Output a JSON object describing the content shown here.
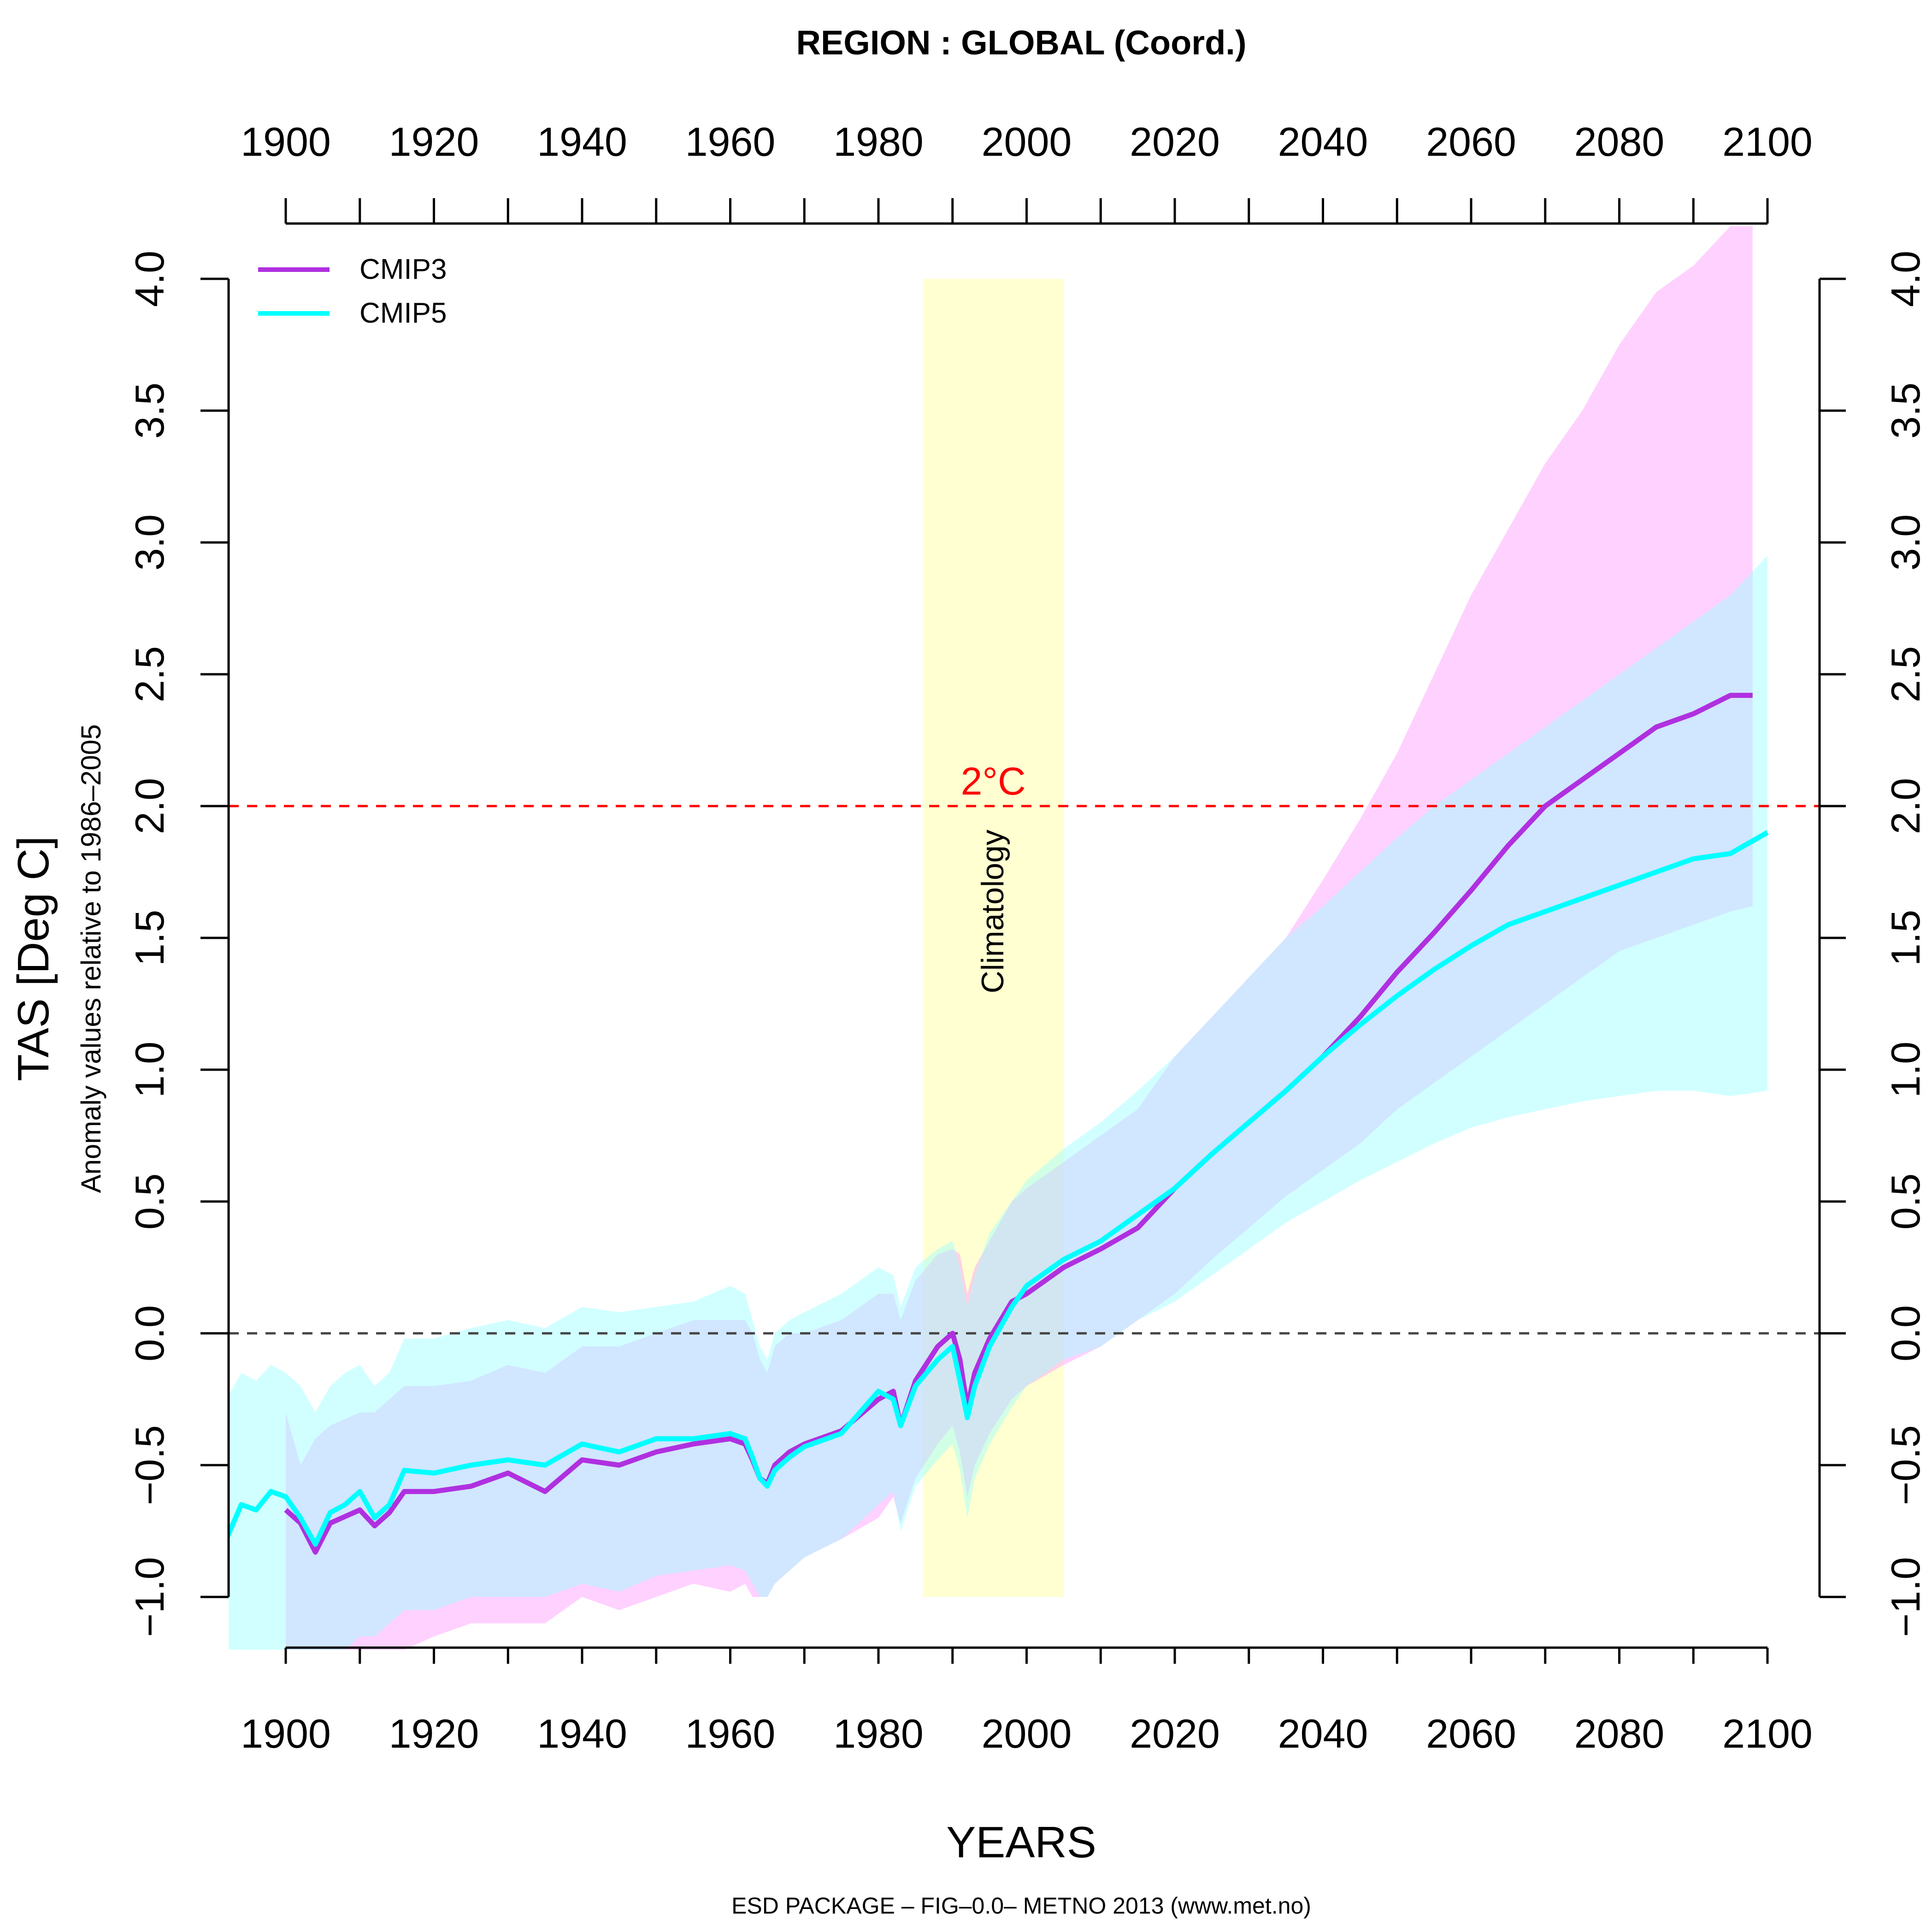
{
  "chart_data": {
    "type": "line",
    "title": "REGION :  GLOBAL (Coord.)",
    "xlabel": "YEARS",
    "ylabel": "TAS [Deg C]",
    "ylabel_sub": "Anomaly values relative to 1986–2005",
    "footer": "ESD PACKAGE – FIG–0.0– METNO 2013 (www.met.no)",
    "xlim": [
      1892,
      2100
    ],
    "ylim": [
      -1.2,
      4.2
    ],
    "x_ticks": [
      1900,
      1910,
      1920,
      1930,
      1940,
      1950,
      1960,
      1970,
      1980,
      1990,
      2000,
      2010,
      2020,
      2030,
      2040,
      2050,
      2060,
      2070,
      2080,
      2090,
      2100
    ],
    "x_tick_labels": [
      "1900",
      "1920",
      "1940",
      "1960",
      "1980",
      "2000",
      "2020",
      "2040",
      "2060",
      "2080",
      "2100"
    ],
    "y_ticks": [
      -1.0,
      -0.5,
      0.0,
      0.5,
      1.0,
      1.5,
      2.0,
      2.5,
      3.0,
      3.5,
      4.0
    ],
    "y_tick_labels": [
      "−1.0",
      "−0.5",
      "0.0",
      "0.5",
      "1.0",
      "1.5",
      "2.0",
      "2.5",
      "3.0",
      "3.5",
      "4.0"
    ],
    "legend_position": "top-left",
    "grid": false,
    "series": [
      {
        "name": "CMIP3",
        "color": "#b030e0",
        "band_color": "#ff99ff",
        "x": [
          1900,
          1902,
          1904,
          1906,
          1910,
          1912,
          1914,
          1916,
          1920,
          1925,
          1930,
          1935,
          1940,
          1945,
          1950,
          1955,
          1960,
          1962,
          1963,
          1964,
          1965,
          1966,
          1968,
          1970,
          1975,
          1980,
          1982,
          1983,
          1985,
          1988,
          1990,
          1991,
          1992,
          1993,
          1995,
          1998,
          2000,
          2005,
          2010,
          2015,
          2020,
          2025,
          2030,
          2035,
          2040,
          2045,
          2050,
          2055,
          2060,
          2065,
          2070,
          2075,
          2080,
          2085,
          2090,
          2095,
          2098
        ],
        "values": [
          -0.67,
          -0.72,
          -0.83,
          -0.72,
          -0.67,
          -0.73,
          -0.68,
          -0.6,
          -0.6,
          -0.58,
          -0.53,
          -0.6,
          -0.48,
          -0.5,
          -0.45,
          -0.42,
          -0.4,
          -0.42,
          -0.48,
          -0.55,
          -0.57,
          -0.5,
          -0.45,
          -0.42,
          -0.37,
          -0.25,
          -0.22,
          -0.35,
          -0.18,
          -0.05,
          0.0,
          -0.1,
          -0.28,
          -0.15,
          -0.02,
          0.12,
          0.15,
          0.25,
          0.32,
          0.4,
          0.55,
          0.68,
          0.8,
          0.92,
          1.05,
          1.2,
          1.37,
          1.52,
          1.68,
          1.85,
          2.0,
          2.1,
          2.2,
          2.3,
          2.35,
          2.42,
          2.42
        ],
        "upper": [
          -0.3,
          -0.5,
          -0.4,
          -0.35,
          -0.3,
          -0.3,
          -0.25,
          -0.2,
          -0.2,
          -0.18,
          -0.12,
          -0.15,
          -0.05,
          -0.05,
          0.0,
          0.05,
          0.05,
          0.05,
          0.0,
          -0.1,
          -0.15,
          -0.05,
          0.0,
          0.0,
          0.05,
          0.15,
          0.15,
          0.05,
          0.2,
          0.3,
          0.32,
          0.3,
          0.15,
          0.25,
          0.35,
          0.5,
          0.55,
          0.65,
          0.75,
          0.85,
          1.05,
          1.2,
          1.35,
          1.5,
          1.72,
          1.95,
          2.2,
          2.5,
          2.8,
          3.05,
          3.3,
          3.5,
          3.75,
          3.95,
          4.05,
          4.2,
          4.2
        ],
        "lower": [
          -1.2,
          -1.2,
          -1.2,
          -1.2,
          -1.2,
          -1.2,
          -1.2,
          -1.2,
          -1.15,
          -1.1,
          -1.1,
          -1.1,
          -1.0,
          -1.05,
          -1.0,
          -0.95,
          -0.98,
          -0.95,
          -1.0,
          -1.0,
          -1.0,
          -0.95,
          -0.9,
          -0.85,
          -0.78,
          -0.7,
          -0.62,
          -0.72,
          -0.55,
          -0.42,
          -0.35,
          -0.45,
          -0.62,
          -0.5,
          -0.38,
          -0.25,
          -0.2,
          -0.12,
          -0.05,
          0.05,
          0.15,
          0.28,
          0.4,
          0.52,
          0.62,
          0.72,
          0.85,
          0.95,
          1.05,
          1.15,
          1.25,
          1.35,
          1.45,
          1.5,
          1.55,
          1.6,
          1.62
        ]
      },
      {
        "name": "CMIP5",
        "color": "#00ffff",
        "band_color": "#99ffff",
        "x": [
          1892,
          1894,
          1896,
          1898,
          1900,
          1902,
          1904,
          1906,
          1908,
          1910,
          1912,
          1914,
          1916,
          1920,
          1925,
          1930,
          1935,
          1940,
          1945,
          1950,
          1955,
          1960,
          1962,
          1963,
          1964,
          1965,
          1966,
          1968,
          1970,
          1975,
          1980,
          1982,
          1983,
          1985,
          1988,
          1990,
          1991,
          1992,
          1993,
          1995,
          1998,
          2000,
          2005,
          2010,
          2015,
          2020,
          2025,
          2030,
          2035,
          2040,
          2045,
          2050,
          2055,
          2060,
          2065,
          2070,
          2075,
          2080,
          2085,
          2090,
          2095,
          2100
        ],
        "values": [
          -0.78,
          -0.65,
          -0.67,
          -0.6,
          -0.62,
          -0.7,
          -0.8,
          -0.68,
          -0.65,
          -0.6,
          -0.7,
          -0.65,
          -0.52,
          -0.53,
          -0.5,
          -0.48,
          -0.5,
          -0.42,
          -0.45,
          -0.4,
          -0.4,
          -0.38,
          -0.4,
          -0.47,
          -0.55,
          -0.58,
          -0.52,
          -0.47,
          -0.43,
          -0.38,
          -0.22,
          -0.25,
          -0.35,
          -0.2,
          -0.1,
          -0.05,
          -0.18,
          -0.32,
          -0.2,
          -0.05,
          0.1,
          0.18,
          0.28,
          0.35,
          0.45,
          0.55,
          0.68,
          0.8,
          0.92,
          1.05,
          1.17,
          1.28,
          1.38,
          1.47,
          1.55,
          1.6,
          1.65,
          1.7,
          1.75,
          1.8,
          1.82,
          1.9
        ],
        "upper": [
          -0.25,
          -0.15,
          -0.18,
          -0.12,
          -0.15,
          -0.2,
          -0.3,
          -0.2,
          -0.15,
          -0.12,
          -0.2,
          -0.15,
          -0.02,
          -0.02,
          0.02,
          0.05,
          0.02,
          0.1,
          0.08,
          0.1,
          0.12,
          0.18,
          0.15,
          0.05,
          -0.05,
          -0.1,
          0.0,
          0.05,
          0.08,
          0.15,
          0.25,
          0.22,
          0.1,
          0.25,
          0.32,
          0.35,
          0.25,
          0.1,
          0.22,
          0.38,
          0.5,
          0.58,
          0.7,
          0.8,
          0.92,
          1.05,
          1.2,
          1.35,
          1.5,
          1.62,
          1.75,
          1.88,
          2.0,
          2.1,
          2.2,
          2.3,
          2.4,
          2.5,
          2.6,
          2.7,
          2.8,
          2.95
        ],
        "lower": [
          -1.2,
          -1.2,
          -1.2,
          -1.2,
          -1.2,
          -1.2,
          -1.2,
          -1.2,
          -1.2,
          -1.15,
          -1.15,
          -1.1,
          -1.05,
          -1.05,
          -1.0,
          -1.0,
          -1.0,
          -0.95,
          -0.98,
          -0.92,
          -0.9,
          -0.88,
          -0.9,
          -0.95,
          -1.0,
          -1.0,
          -0.95,
          -0.9,
          -0.85,
          -0.78,
          -0.65,
          -0.6,
          -0.75,
          -0.58,
          -0.48,
          -0.42,
          -0.52,
          -0.7,
          -0.55,
          -0.42,
          -0.28,
          -0.2,
          -0.1,
          -0.05,
          0.05,
          0.12,
          0.22,
          0.32,
          0.42,
          0.5,
          0.58,
          0.65,
          0.72,
          0.78,
          0.82,
          0.85,
          0.88,
          0.9,
          0.92,
          0.92,
          0.9,
          0.92
        ]
      }
    ],
    "climatology": {
      "x_start": 1986,
      "x_end": 2005,
      "y_min": -1.0,
      "y_max": 4.0,
      "label": "Climatology",
      "color": "#ffffcc"
    },
    "reference_lines": [
      {
        "y": 2.0,
        "label": "2°C",
        "color": "#ff0000"
      },
      {
        "y": 0.0,
        "label": "",
        "color": "#444444"
      }
    ]
  }
}
